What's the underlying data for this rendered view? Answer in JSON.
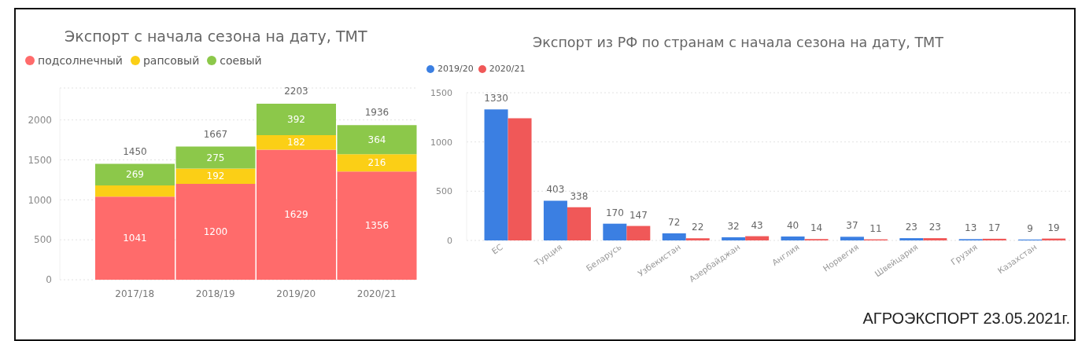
{
  "chart_data": [
    {
      "type": "bar",
      "title": "Экспорт с начала сезона на дату, ТМТ",
      "categories": [
        "2017/18",
        "2018/19",
        "2019/20",
        "2020/21"
      ],
      "stacked": true,
      "series": [
        {
          "name": "подсолнечный",
          "color": "#ff6b6b",
          "values": [
            1041,
            1200,
            1629,
            1356
          ],
          "value_labels": [
            "1041",
            "1200",
            "1629",
            "1356"
          ]
        },
        {
          "name": "рапсовый",
          "color": "#fbcf16",
          "values": [
            140,
            192,
            182,
            216
          ],
          "value_labels": [
            null,
            "192",
            "182",
            "216"
          ]
        },
        {
          "name": "соевый",
          "color": "#8cc84a",
          "values": [
            269,
            275,
            392,
            364
          ],
          "value_labels": [
            "269",
            "275",
            "392",
            "364"
          ]
        }
      ],
      "totals": [
        "1450",
        "1667",
        "2203",
        "1936"
      ],
      "ylim": [
        0,
        2400
      ],
      "yticks": [
        0,
        500,
        1000,
        1500,
        2000
      ],
      "grid": "y",
      "legend": "top left"
    },
    {
      "type": "bar",
      "title": "Экспорт из РФ по странам с начала сезона на дату, ТМТ",
      "categories": [
        "ЕС",
        "Турция",
        "Беларусь",
        "Узбекистан",
        "Азербайджан",
        "Англия",
        "Норвегия",
        "Швейцария",
        "Грузия",
        "Казахстан"
      ],
      "series": [
        {
          "name": "2019/20",
          "color": "#3b7fe2",
          "values": [
            1330,
            403,
            170,
            72,
            32,
            40,
            37,
            23,
            13,
            9
          ],
          "value_labels": [
            "1330",
            "403",
            "170",
            "72",
            "32",
            "40",
            "37",
            "23",
            "13",
            "9"
          ]
        },
        {
          "name": "2020/21",
          "color": "#f05858",
          "values": [
            1240,
            338,
            147,
            22,
            43,
            14,
            11,
            23,
            17,
            19
          ],
          "value_labels": [
            null,
            "338",
            "147",
            "22",
            "43",
            "14",
            "11",
            "23",
            "17",
            "19"
          ]
        }
      ],
      "ylim": [
        0,
        1500
      ],
      "yticks": [
        0,
        500,
        1000,
        1500
      ],
      "grid": "y",
      "legend": "top left",
      "annotations": [
        "АГРОЭКСПОРТ 23.05.2021г."
      ]
    }
  ]
}
